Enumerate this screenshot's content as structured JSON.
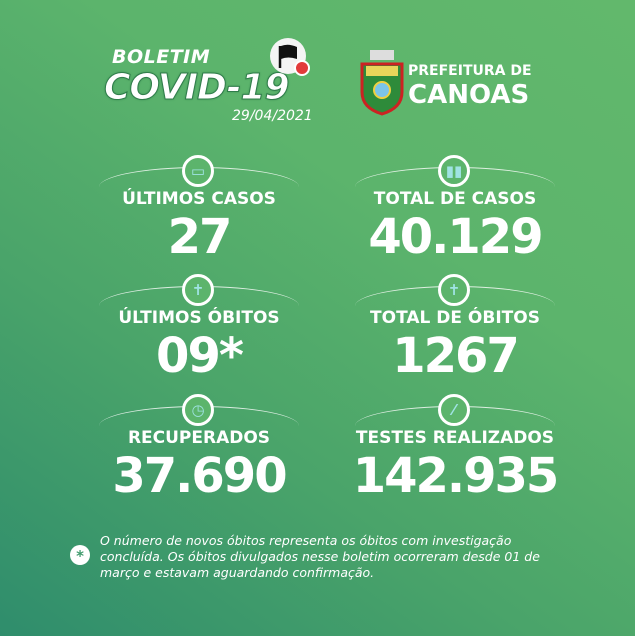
{
  "header": {
    "boletim": "BOLETIM",
    "covid": "COVID-19",
    "date": "29/04/2021",
    "prefeitura": "PREFEITURA DE",
    "canoas": "CANOAS"
  },
  "stats": [
    {
      "label": "ÚLTIMOS CASOS",
      "value": "27",
      "icon": "mask-icon"
    },
    {
      "label": "TOTAL DE CASOS",
      "value": "40.129",
      "icon": "people-icon"
    },
    {
      "label": "ÚLTIMOS ÓBITOS",
      "value": "09*",
      "icon": "cross-icon"
    },
    {
      "label": "TOTAL DE ÓBITOS",
      "value": "1267",
      "icon": "cross-icon"
    },
    {
      "label": "RECUPERADOS",
      "value": "37.690",
      "icon": "clock-icon"
    },
    {
      "label": "TESTES REALIZADOS",
      "value": "142.935",
      "icon": "syringe-icon"
    }
  ],
  "footnote": {
    "symbol": "*",
    "text": "O número de novos óbitos representa os óbitos com investigação concluída. Os óbitos divulgados nesse boletim ocorreram desde 01 de março e estavam aguardando confirmação."
  },
  "colors": {
    "background": "#5cb46c",
    "background_dark": "#2f8d6c",
    "icon_accent": "#9fe3e3"
  }
}
